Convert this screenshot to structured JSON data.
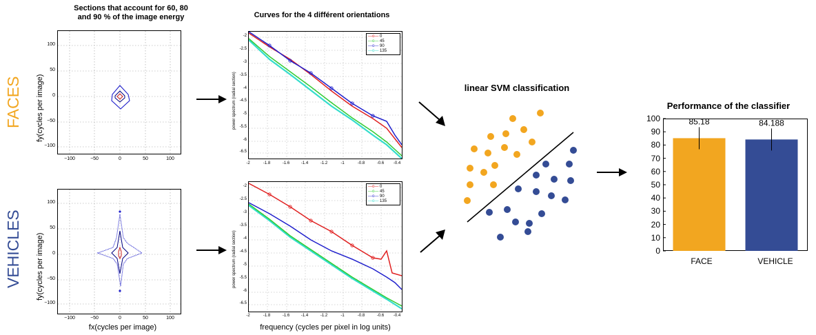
{
  "colors": {
    "face": "#F2A620",
    "vehicle": "#344C95",
    "red": "#E02020",
    "green": "#33CC33",
    "blue": "#1F1FCC",
    "cyan": "#33DDCC"
  },
  "spectra": {
    "title_line1": "Sections that account for 60, 80",
    "title_line2": "and 90 % of the image energy",
    "ylabel_top": "fy(cycles per image)",
    "ylabel_bottom": "fy(cycles per image)",
    "xlabel": "fx(cycles per image)",
    "yticks": [
      "100",
      "50",
      "0",
      "−50",
      "−100"
    ],
    "xticks": [
      "−100",
      "−50",
      "0",
      "50",
      "100"
    ]
  },
  "row_labels": {
    "faces": "FACES",
    "vehicles": "VEHICLES"
  },
  "curves": {
    "title": "Curves for the 4 différent orientations",
    "ylabel": "power spectrum (radial section)",
    "xlabel": "frequency (cycles per pixel in log units)",
    "yticks": [
      "-2",
      "-2.5",
      "-3",
      "-3.5",
      "-4",
      "-4.5",
      "-5",
      "-5.5",
      "-6",
      "-6.5"
    ],
    "xticks": [
      "-2",
      "-1.8",
      "-1.6",
      "-1.4",
      "-1.2",
      "-1",
      "-0.8",
      "-0.6",
      "-0.4"
    ],
    "legend": [
      "0",
      "45",
      "90",
      "135"
    ]
  },
  "svm": {
    "title": "linear SVM classification"
  },
  "chart_data": {
    "type": "bar",
    "title": "Performance of the classifier",
    "categories": [
      "FACE",
      "VEHICLE"
    ],
    "values": [
      85.18,
      84.188
    ],
    "value_labels": [
      "85.18",
      "84.188"
    ],
    "ylim": [
      0,
      100
    ],
    "yticks": [
      "100",
      "90",
      "80",
      "70",
      "60",
      "50",
      "40",
      "30",
      "20",
      "10",
      "0"
    ],
    "error_bars": true,
    "colors": [
      "#F2A620",
      "#344C95"
    ]
  }
}
